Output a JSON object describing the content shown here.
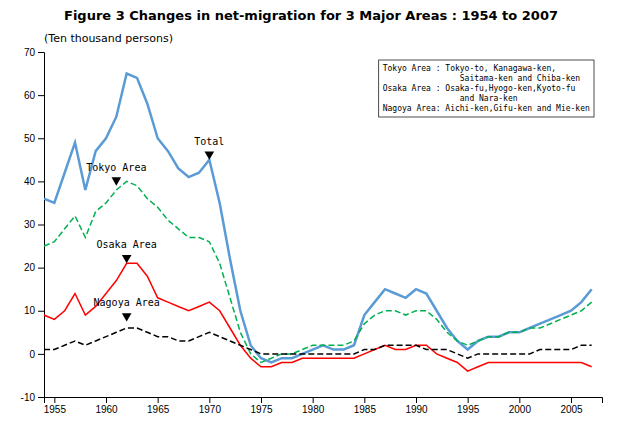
{
  "chart_data": {
    "type": "line",
    "title": "Figure 3  Changes in net-migration for 3 Major Areas : 1954 to 2007",
    "ylabel": "(Ten thousand persons)",
    "x": [
      1954,
      1955,
      1956,
      1957,
      1958,
      1959,
      1960,
      1961,
      1962,
      1963,
      1964,
      1965,
      1966,
      1967,
      1968,
      1969,
      1970,
      1971,
      1972,
      1973,
      1974,
      1975,
      1976,
      1977,
      1978,
      1979,
      1980,
      1981,
      1982,
      1983,
      1984,
      1985,
      1986,
      1987,
      1988,
      1989,
      1990,
      1991,
      1992,
      1993,
      1994,
      1995,
      1996,
      1997,
      1998,
      1999,
      2000,
      2001,
      2002,
      2003,
      2004,
      2005,
      2006,
      2007
    ],
    "xlim": [
      1954,
      2008
    ],
    "xticks": [
      1955,
      1960,
      1965,
      1970,
      1975,
      1980,
      1985,
      1990,
      1995,
      2000,
      2005
    ],
    "ylim": [
      -10,
      70
    ],
    "yticks": [
      -10,
      0,
      10,
      20,
      30,
      40,
      50,
      60,
      70
    ],
    "series": [
      {
        "color": "#5b9bd5",
        "line_style": "solid",
        "values": [
          36,
          35,
          42,
          49,
          38,
          47,
          50,
          55,
          65,
          64,
          58,
          50,
          47,
          43,
          41,
          42,
          45,
          35,
          22,
          10,
          2,
          -1,
          -2,
          -1,
          -1,
          0,
          1,
          2,
          1,
          1,
          2,
          9,
          12,
          15,
          14,
          13,
          15,
          14,
          10,
          6,
          3,
          1,
          3,
          4,
          4,
          5,
          5,
          6,
          7,
          8,
          9,
          10,
          12,
          15
        ]
      },
      {
        "color": "#00b050",
        "line_style": "dashed",
        "values": [
          25,
          26,
          29,
          32,
          27,
          33,
          35,
          38,
          40,
          39,
          36,
          34,
          31,
          29,
          27,
          27,
          26,
          21,
          13,
          5,
          0,
          -2,
          -1,
          0,
          0,
          1,
          2,
          2,
          2,
          2,
          3,
          7,
          9,
          10,
          10,
          9,
          10,
          10,
          8,
          5,
          3,
          2,
          3,
          4,
          4,
          5,
          5,
          6,
          6,
          7,
          8,
          9,
          10,
          12
        ]
      },
      {
        "color": "#ff0000",
        "line_style": "solid",
        "values": [
          9,
          8,
          10,
          14,
          9,
          11,
          14,
          17,
          21,
          21,
          18,
          13,
          12,
          11,
          10,
          11,
          12,
          10,
          6,
          2,
          -1,
          -3,
          -3,
          -2,
          -2,
          -1,
          -1,
          -1,
          -1,
          -1,
          -1,
          0,
          1,
          2,
          1,
          1,
          2,
          2,
          0,
          -1,
          -2,
          -4,
          -3,
          -2,
          -2,
          -2,
          -2,
          -2,
          -2,
          -2,
          -2,
          -2,
          -2,
          -3
        ]
      },
      {
        "color": "#000000",
        "line_style": "dashed",
        "values": [
          1,
          1,
          2,
          3,
          2,
          3,
          4,
          5,
          6,
          6,
          5,
          4,
          4,
          3,
          3,
          4,
          5,
          4,
          3,
          2,
          1,
          0,
          0,
          0,
          0,
          0,
          0,
          0,
          0,
          0,
          0,
          1,
          1,
          2,
          2,
          2,
          2,
          1,
          1,
          1,
          0,
          -1,
          0,
          0,
          0,
          0,
          0,
          0,
          1,
          1,
          1,
          1,
          2,
          2
        ]
      }
    ],
    "annotations": [
      {
        "text": "Tokyo Area",
        "x": 1961,
        "y": 39
      },
      {
        "text": "Osaka Area",
        "x": 1962,
        "y": 21
      },
      {
        "text": "Nagoya Area",
        "x": 1962,
        "y": 7.5
      },
      {
        "text": "Total",
        "x": 1970,
        "y": 45
      }
    ],
    "note": [
      "Tokyo Area : Tokyo-to, Kanagawa-ken,",
      "                Saitama-ken and Chiba-ken",
      "Osaka Area : Osaka-fu,Hyogo-ken,Kyoto-fu",
      "                and Nara-ken",
      "Nagoya Area: Aichi-ken,Gifu-ken and Mie-ken"
    ]
  }
}
